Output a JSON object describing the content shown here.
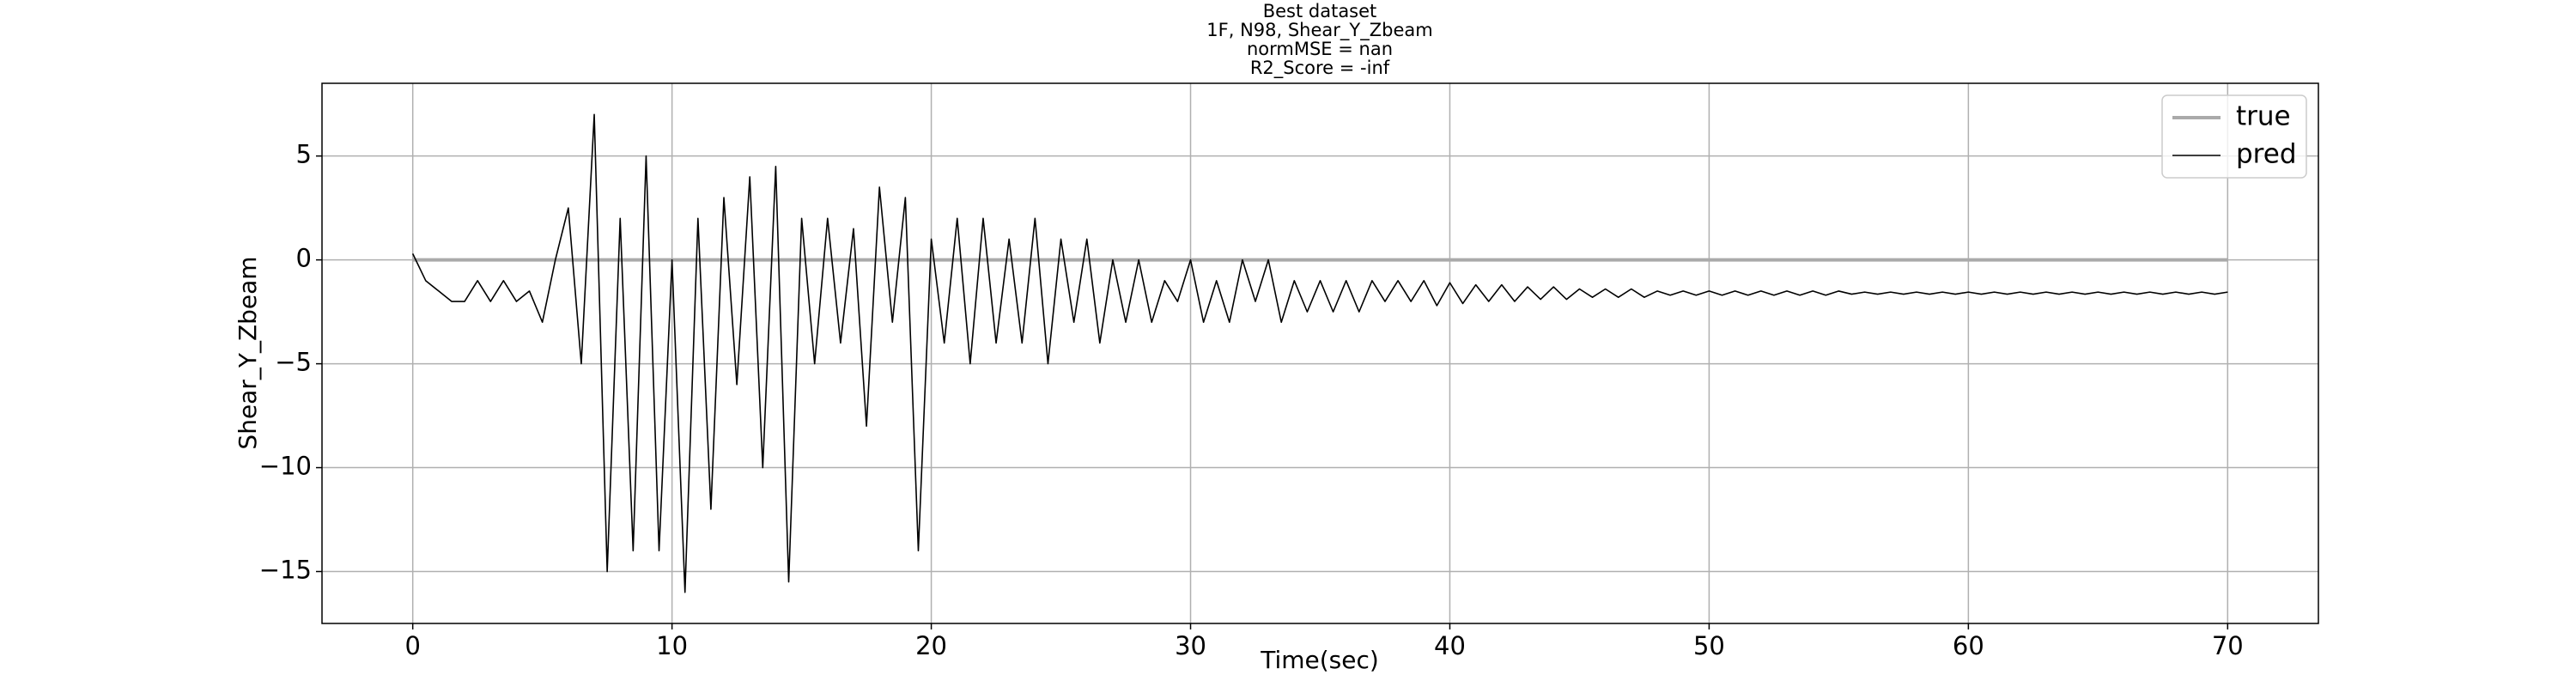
{
  "chart_data": {
    "type": "line",
    "title": [
      "Best dataset",
      "1F, N98, Shear_Y_Zbeam",
      "normMSE = nan",
      "R2_Score = -inf"
    ],
    "xlabel": "Time(sec)",
    "ylabel": "Shear_Y_Zbeam",
    "xlim": [
      -3.5,
      73.5
    ],
    "ylim": [
      -17.5,
      8.5
    ],
    "xticks": [
      0,
      10,
      20,
      30,
      40,
      50,
      60,
      70
    ],
    "yticks": [
      {
        "value": -15,
        "label": "−15"
      },
      {
        "value": -10,
        "label": "−10"
      },
      {
        "value": -5,
        "label": "−5"
      },
      0,
      5
    ],
    "grid": true,
    "legend": "upper right",
    "series": [
      {
        "name": "true",
        "color": "#aaaaaa",
        "x": [
          0,
          70
        ],
        "values": [
          0,
          0
        ]
      },
      {
        "name": "pred",
        "color": "#000000",
        "x": [
          0,
          0.5,
          1,
          1.5,
          2,
          2.5,
          3,
          3.5,
          4,
          4.5,
          5,
          5.5,
          6,
          6.5,
          7,
          7.5,
          8,
          8.5,
          9,
          9.5,
          10,
          10.5,
          11,
          11.5,
          12,
          12.5,
          13,
          13.5,
          14,
          14.5,
          15,
          15.5,
          16,
          16.5,
          17,
          17.5,
          18,
          18.5,
          19,
          19.5,
          20,
          20.5,
          21,
          21.5,
          22,
          22.5,
          23,
          23.5,
          24,
          24.5,
          25,
          25.5,
          26,
          26.5,
          27,
          27.5,
          28,
          28.5,
          29,
          29.5,
          30,
          30.5,
          31,
          31.5,
          32,
          32.5,
          33,
          33.5,
          34,
          34.5,
          35,
          35.5,
          36,
          36.5,
          37,
          37.5,
          38,
          38.5,
          39,
          39.5,
          40,
          40.5,
          41,
          41.5,
          42,
          42.5,
          43,
          43.5,
          44,
          44.5,
          45,
          45.5,
          46,
          46.5,
          47,
          47.5,
          48,
          48.5,
          49,
          49.5,
          50,
          50.5,
          51,
          51.5,
          52,
          52.5,
          53,
          53.5,
          54,
          54.5,
          55,
          55.5,
          56,
          56.5,
          57,
          57.5,
          58,
          58.5,
          59,
          59.5,
          60,
          60.5,
          61,
          61.5,
          62,
          62.5,
          63,
          63.5,
          64,
          64.5,
          65,
          65.5,
          66,
          66.5,
          67,
          67.5,
          68,
          68.5,
          69,
          69.5,
          70
        ],
        "values": [
          0.3,
          -1,
          -1.5,
          -2,
          -2,
          -1,
          -2,
          -1,
          -2,
          -1.5,
          -3,
          0,
          2.5,
          -5,
          7,
          -15,
          2,
          -14,
          5,
          -14,
          0,
          -16,
          2,
          -12,
          3,
          -6,
          4,
          -10,
          4.5,
          -15.5,
          2,
          -5,
          2,
          -4,
          1.5,
          -8,
          3.5,
          -3,
          3,
          -14,
          1,
          -4,
          2,
          -5,
          2,
          -4,
          1,
          -4,
          2,
          -5,
          1,
          -3,
          1,
          -4,
          0,
          -3,
          0,
          -3,
          -1,
          -2,
          0,
          -3,
          -1,
          -3,
          0,
          -2,
          0,
          -3,
          -1,
          -2.5,
          -1,
          -2.5,
          -1,
          -2.5,
          -1,
          -2,
          -1,
          -2,
          -1,
          -2.2,
          -1.1,
          -2.1,
          -1.2,
          -2,
          -1.2,
          -2,
          -1.3,
          -1.9,
          -1.3,
          -1.9,
          -1.4,
          -1.8,
          -1.4,
          -1.8,
          -1.4,
          -1.8,
          -1.5,
          -1.7,
          -1.5,
          -1.7,
          -1.5,
          -1.7,
          -1.5,
          -1.7,
          -1.5,
          -1.7,
          -1.5,
          -1.7,
          -1.5,
          -1.7,
          -1.5,
          -1.65,
          -1.55,
          -1.65,
          -1.55,
          -1.65,
          -1.55,
          -1.65,
          -1.55,
          -1.65,
          -1.55,
          -1.65,
          -1.55,
          -1.65,
          -1.55,
          -1.65,
          -1.55,
          -1.65,
          -1.55,
          -1.65,
          -1.55,
          -1.65,
          -1.55,
          -1.65,
          -1.55,
          -1.65,
          -1.55,
          -1.65,
          -1.55,
          -1.65,
          -1.55
        ]
      }
    ]
  }
}
